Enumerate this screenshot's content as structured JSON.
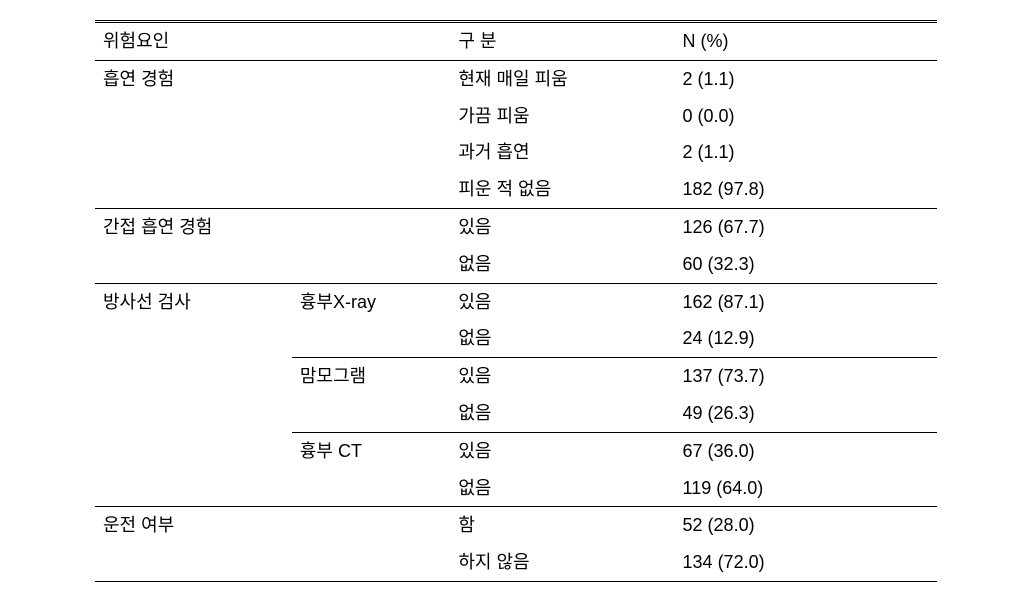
{
  "header": {
    "risk_factor": "위험요인",
    "category": "구 분",
    "n_pct": "N (%)"
  },
  "rows": [
    {
      "group": "흡연 경험",
      "sub": "",
      "cat": "현재 매일 피움",
      "val": "2 (1.1)",
      "border": "top"
    },
    {
      "group": "",
      "sub": "",
      "cat": "가끔 피움",
      "val": "0 (0.0)",
      "border": ""
    },
    {
      "group": "",
      "sub": "",
      "cat": "과거 흡연",
      "val": "2 (1.1)",
      "border": ""
    },
    {
      "group": "",
      "sub": "",
      "cat": "피운 적 없음",
      "val": "182 (97.8)",
      "border": ""
    },
    {
      "group": "간접 흡연 경험",
      "sub": "",
      "cat": "있음",
      "val": "126 (67.7)",
      "border": "top"
    },
    {
      "group": "",
      "sub": "",
      "cat": "없음",
      "val": "60 (32.3)",
      "border": ""
    },
    {
      "group": "방사선 검사",
      "sub": "흉부X-ray",
      "cat": "있음",
      "val": "162 (87.1)",
      "border": "top"
    },
    {
      "group": "",
      "sub": "",
      "cat": "없음",
      "val": "24 (12.9)",
      "border": ""
    },
    {
      "group": "",
      "sub": "맘모그램",
      "cat": "있음",
      "val": "137 (73.7)",
      "border": "sub-top"
    },
    {
      "group": "",
      "sub": "",
      "cat": "없음",
      "val": "49 (26.3)",
      "border": ""
    },
    {
      "group": "",
      "sub": "흉부 CT",
      "cat": "있음",
      "val": "67 (36.0)",
      "border": "sub-top"
    },
    {
      "group": "",
      "sub": "",
      "cat": "없음",
      "val": "119 (64.0)",
      "border": ""
    },
    {
      "group": "운전 여부",
      "sub": "",
      "cat": "함",
      "val": "52 (28.0)",
      "border": "top"
    },
    {
      "group": "",
      "sub": "",
      "cat": "하지 않음",
      "val": "134 (72.0)",
      "border": "bottom"
    }
  ]
}
